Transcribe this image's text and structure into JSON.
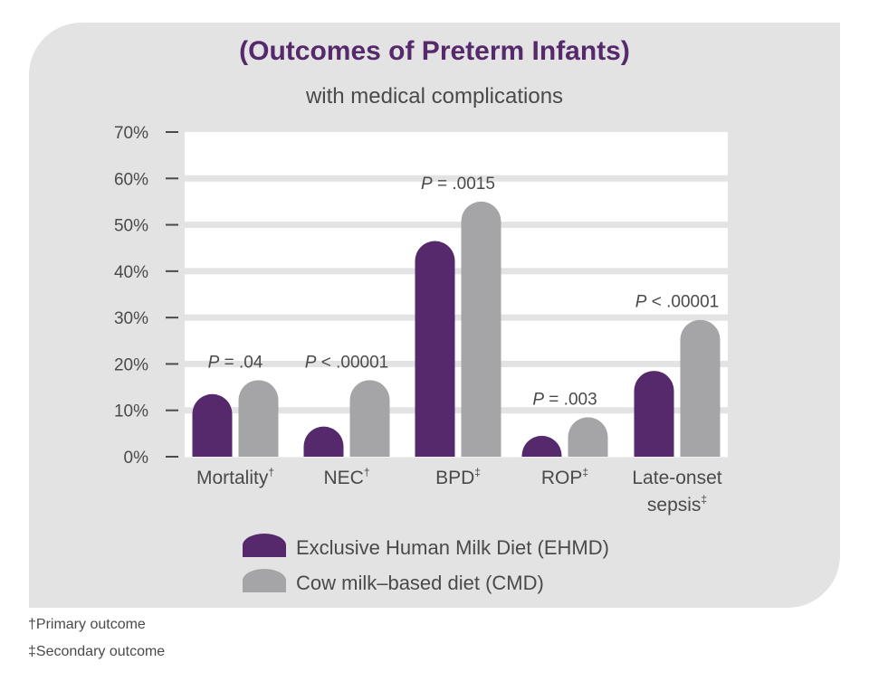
{
  "chart_data": {
    "type": "bar",
    "title": "(Outcomes of Preterm Infants)",
    "subtitle": "with medical complications",
    "categories": [
      {
        "label": "Mortality",
        "mark": "†"
      },
      {
        "label": "NEC",
        "mark": "†"
      },
      {
        "label": "BPD",
        "mark": "‡"
      },
      {
        "label": "ROP",
        "mark": "‡"
      },
      {
        "label": "Late-onset sepsis",
        "lines": [
          "Late-onset",
          "sepsis"
        ],
        "mark": "‡"
      }
    ],
    "series": [
      {
        "name": "Exclusive Human Milk Diet (EHMD)",
        "color": "#55296c",
        "values": [
          13.5,
          6.5,
          46.5,
          4.5,
          18.5
        ]
      },
      {
        "name": "Cow milk–based diet (CMD)",
        "color": "#a5a5a7",
        "values": [
          16.5,
          16.5,
          55,
          8.5,
          29.5
        ]
      }
    ],
    "annotations": [
      {
        "p": "P",
        "text": " = .04"
      },
      {
        "p": "P",
        "text": " < .00001"
      },
      {
        "p": "P",
        "text": " = .0015"
      },
      {
        "p": "P",
        "text": " = .003"
      },
      {
        "p": "P",
        "text": " < .00001"
      }
    ],
    "yticks": [
      "0%",
      "10%",
      "20%",
      "30%",
      "40%",
      "50%",
      "60%",
      "70%"
    ],
    "ylim": [
      0,
      70
    ],
    "grid": true,
    "legend_position": "bottom"
  },
  "footnotes": [
    "†Primary outcome",
    "‡Secondary outcome"
  ],
  "colors": {
    "title": "#55296c",
    "text": "#4a4a4a",
    "panel": "#e3e3e3",
    "plot_background": "#ffffff"
  }
}
